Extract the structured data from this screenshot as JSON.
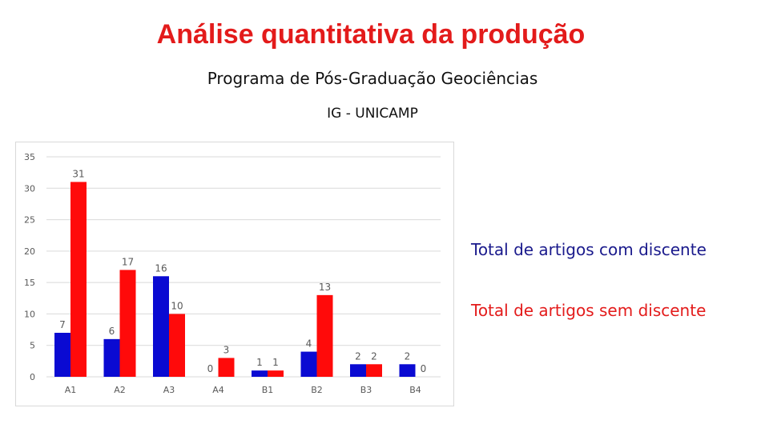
{
  "header": {
    "title": "Análise quantitativa da produção",
    "subtitle": "Programa de Pós-Graduação Geociências",
    "institution": "IG - UNICAMP"
  },
  "legend": {
    "with_student": "Total de artigos com discente",
    "without_student": "Total de artigos sem discente"
  },
  "colors": {
    "with_student": "#0a0ad2",
    "without_student": "#ff0a0a",
    "grid": "#d9d9d9",
    "tick": "#595959"
  },
  "chart_data": {
    "type": "bar",
    "categories": [
      "A1",
      "A2",
      "A3",
      "A4",
      "B1",
      "B2",
      "B3",
      "B4"
    ],
    "series": [
      {
        "name": "Total de artigos com discente",
        "values": [
          7,
          6,
          16,
          0,
          1,
          4,
          2,
          2
        ]
      },
      {
        "name": "Total de artigos sem discente",
        "values": [
          31,
          17,
          10,
          3,
          1,
          13,
          2,
          0
        ]
      }
    ],
    "ylim": [
      0,
      35
    ],
    "yticks": [
      0,
      5,
      10,
      15,
      20,
      25,
      30,
      35
    ],
    "grid": true,
    "data_labels": true,
    "legend_position": "right"
  }
}
